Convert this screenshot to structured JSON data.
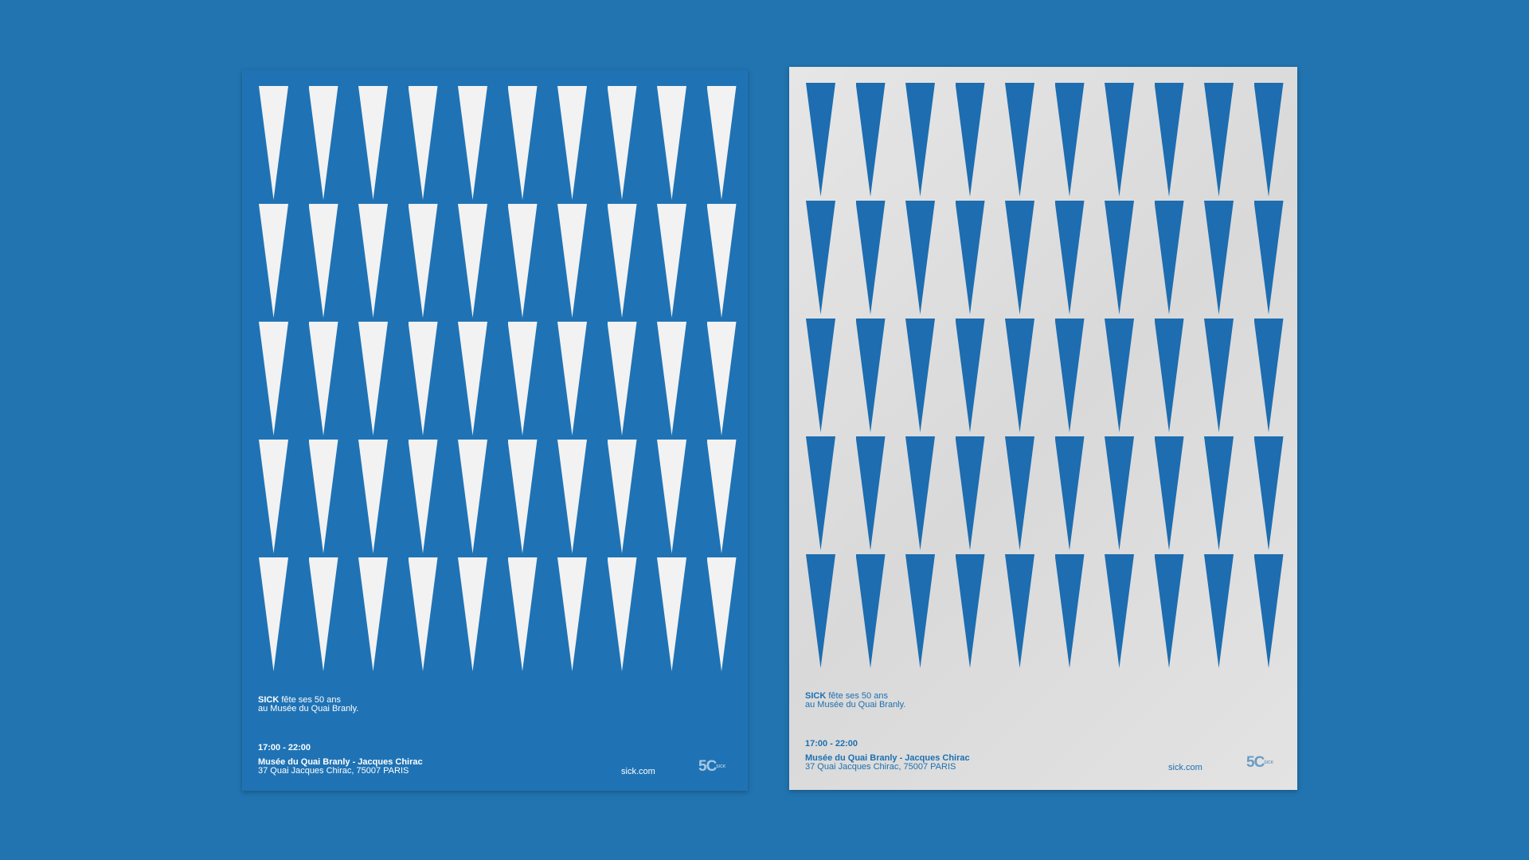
{
  "pattern": {
    "rows": 5,
    "columns": 10,
    "shape": "downward-triangle"
  },
  "colors": {
    "background": "#2174b0",
    "blue_poster": "#1f73b5",
    "white_poster": "#e0e0e0",
    "triangle_blue": "#1d6db0"
  },
  "posters": [
    {
      "brand": "SICK",
      "headline_rest": " fête ses 50 ans",
      "headline_line2": "au Musée du Quai Branly.",
      "time": "17:00 - 22:00",
      "venue": "Musée du Quai Branly - Jacques Chirac",
      "address": "37 Quai Jacques Chirac, 75007 PARIS",
      "website": "sick.com",
      "logo_mark": "5C",
      "logo_small": "SICK"
    },
    {
      "brand": "SICK",
      "headline_rest": " fête ses 50 ans",
      "headline_line2": "au Musée du Quai Branly.",
      "time": "17:00 - 22:00",
      "venue": "Musée du Quai Branly - Jacques Chirac",
      "address": "37 Quai Jacques Chirac, 75007 PARIS",
      "website": "sick.com",
      "logo_mark": "5C",
      "logo_small": "SICK"
    }
  ]
}
